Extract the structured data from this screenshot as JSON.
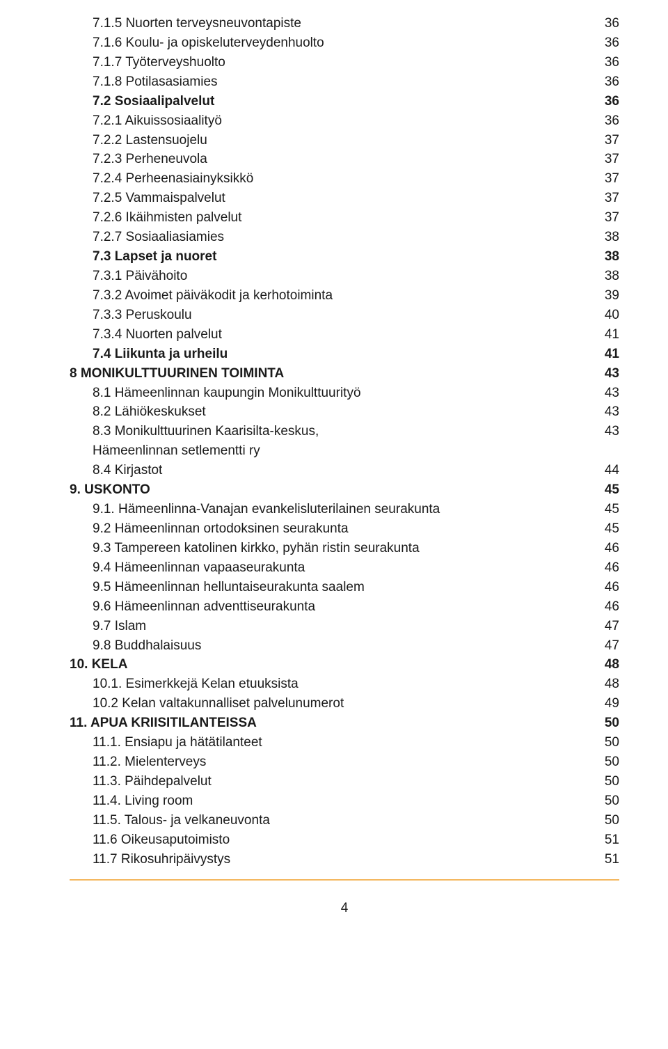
{
  "toc": [
    {
      "label": "7.1.5 Nuorten terveysneuvontapiste",
      "page": "36",
      "indent": 2,
      "bold": false
    },
    {
      "label": "7.1.6 Koulu- ja opiskeluterveydenhuolto",
      "page": "36",
      "indent": 2,
      "bold": false
    },
    {
      "label": "7.1.7 Työterveyshuolto",
      "page": "36",
      "indent": 2,
      "bold": false
    },
    {
      "label": "7.1.8 Potilasasiamies",
      "page": "36",
      "indent": 2,
      "bold": false
    },
    {
      "label": "7.2 Sosiaalipalvelut",
      "page": "36",
      "indent": 1,
      "bold": true
    },
    {
      "label": "7.2.1 Aikuissosiaalityö",
      "page": "36",
      "indent": 2,
      "bold": false
    },
    {
      "label": "7.2.2 Lastensuojelu",
      "page": "37",
      "indent": 2,
      "bold": false
    },
    {
      "label": "7.2.3 Perheneuvola",
      "page": "37",
      "indent": 2,
      "bold": false
    },
    {
      "label": "7.2.4 Perheenasiainyksikkö",
      "page": "37",
      "indent": 2,
      "bold": false
    },
    {
      "label": "7.2.5 Vammaispalvelut",
      "page": "37",
      "indent": 2,
      "bold": false
    },
    {
      "label": "7.2.6 Ikäihmisten palvelut",
      "page": "37",
      "indent": 2,
      "bold": false
    },
    {
      "label": "7.2.7 Sosiaaliasiamies",
      "page": "38",
      "indent": 2,
      "bold": false
    },
    {
      "label": "7.3 Lapset ja nuoret",
      "page": "38",
      "indent": 1,
      "bold": true
    },
    {
      "label": "7.3.1 Päivähoito",
      "page": "38",
      "indent": 2,
      "bold": false
    },
    {
      "label": "7.3.2 Avoimet päiväkodit ja kerhotoiminta",
      "page": "39",
      "indent": 2,
      "bold": false
    },
    {
      "label": "7.3.3 Peruskoulu",
      "page": "40",
      "indent": 2,
      "bold": false
    },
    {
      "label": "7.3.4 Nuorten palvelut",
      "page": "41",
      "indent": 2,
      "bold": false
    },
    {
      "label": "7.4 Liikunta ja urheilu",
      "page": "41",
      "indent": 1,
      "bold": true
    },
    {
      "label": "8 MONIKULTTUURINEN TOIMINTA",
      "page": "43",
      "indent": 0,
      "bold": true
    },
    {
      "label": "8.1 Hämeenlinnan kaupungin Monikulttuurityö",
      "page": "43",
      "indent": 1,
      "bold": false
    },
    {
      "label": "8.2 Lähiökeskukset",
      "page": "43",
      "indent": 1,
      "bold": false
    },
    {
      "label": "8.3 Monikulttuurinen Kaarisilta-keskus,\n       Hämeenlinnan setlementti ry",
      "page": "43",
      "indent": 1,
      "bold": false,
      "multiline": true
    },
    {
      "label": "8.4 Kirjastot",
      "page": "44",
      "indent": 1,
      "bold": false
    },
    {
      "label": "9. USKONTO",
      "page": "45",
      "indent": 0,
      "bold": true
    },
    {
      "label": "9.1. Hämeenlinna-Vanajan evankelisluterilainen seurakunta",
      "page": "45",
      "indent": 1,
      "bold": false
    },
    {
      "label": "9.2 Hämeenlinnan ortodoksinen seurakunta",
      "page": "45",
      "indent": 1,
      "bold": false
    },
    {
      "label": "9.3 Tampereen katolinen kirkko, pyhän ristin seurakunta",
      "page": "46",
      "indent": 1,
      "bold": false
    },
    {
      "label": "9.4 Hämeenlinnan vapaaseurakunta",
      "page": "46",
      "indent": 1,
      "bold": false
    },
    {
      "label": "9.5 Hämeenlinnan helluntaiseurakunta saalem",
      "page": "46",
      "indent": 1,
      "bold": false
    },
    {
      "label": "9.6 Hämeenlinnan adventtiseurakunta",
      "page": "46",
      "indent": 1,
      "bold": false
    },
    {
      "label": "9.7 Islam",
      "page": "47",
      "indent": 1,
      "bold": false
    },
    {
      "label": "9.8 Buddhalaisuus",
      "page": "47",
      "indent": 1,
      "bold": false
    },
    {
      "label": "10. KELA",
      "page": "48",
      "indent": 0,
      "bold": true
    },
    {
      "label": "10.1. Esimerkkejä Kelan etuuksista",
      "page": "48",
      "indent": 1,
      "bold": false
    },
    {
      "label": "10.2 Kelan valtakunnalliset palvelunumerot",
      "page": "49",
      "indent": 1,
      "bold": false
    },
    {
      "label": "11. APUA KRIISITILANTEISSA",
      "page": "50",
      "indent": 0,
      "bold": true
    },
    {
      "label": "11.1. Ensiapu ja hätätilanteet",
      "page": "50",
      "indent": 1,
      "bold": false
    },
    {
      "label": "11.2. Mielenterveys",
      "page": "50",
      "indent": 1,
      "bold": false
    },
    {
      "label": "11.3. Päihdepalvelut",
      "page": "50",
      "indent": 1,
      "bold": false
    },
    {
      "label": "11.4. Living room",
      "page": "50",
      "indent": 1,
      "bold": false
    },
    {
      "label": "11.5. Talous- ja velkaneuvonta",
      "page": "50",
      "indent": 1,
      "bold": false
    },
    {
      "label": "11.6 Oikeusaputoimisto",
      "page": "51",
      "indent": 1,
      "bold": false
    },
    {
      "label": "11.7 Rikosuhripäivystys",
      "page": "51",
      "indent": 1,
      "bold": false
    }
  ],
  "pageNumber": "4",
  "colors": {
    "text": "#1a1a1a",
    "rule": "#f4b860",
    "background": "#ffffff"
  },
  "typography": {
    "font_family": "Century Gothic, Futura, Arial, sans-serif",
    "font_size_pt": 14,
    "line_height": 1.47
  }
}
